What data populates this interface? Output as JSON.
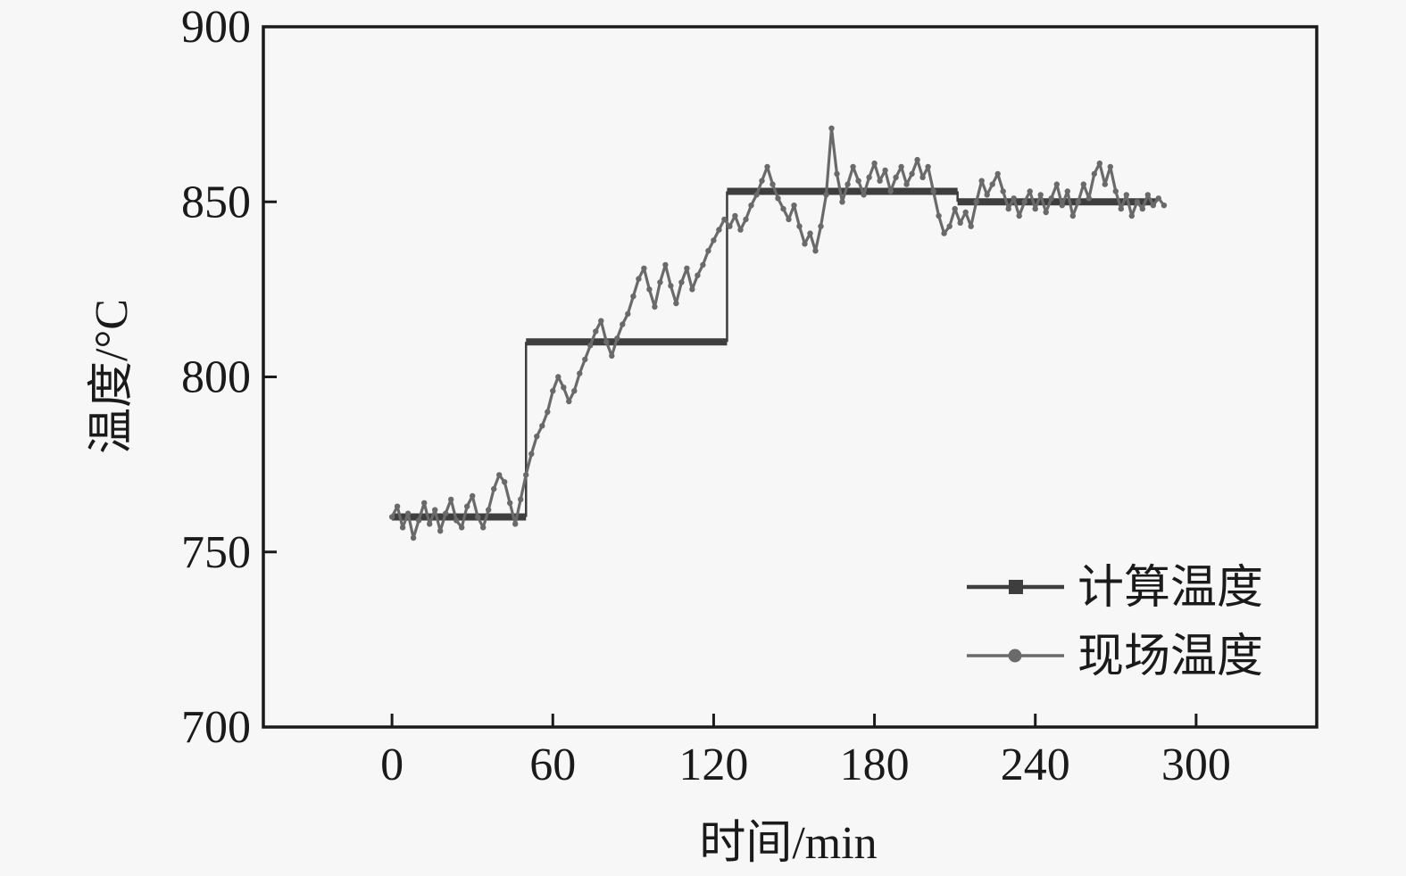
{
  "figure": {
    "background": "#f7f7f7",
    "axis_color": "#1a1a1a"
  },
  "chart_data": {
    "type": "line",
    "title": "",
    "xlabel": "时间/min",
    "ylabel": "温度/°C",
    "xlim": [
      -48,
      345
    ],
    "ylim": [
      700,
      900
    ],
    "x_ticks": [
      0,
      60,
      120,
      180,
      240,
      300
    ],
    "y_ticks": [
      900,
      850,
      800,
      750,
      700
    ],
    "grid": false,
    "legend_position": "lower-right",
    "series": [
      {
        "name": "计算温度",
        "kind": "step",
        "color": "#3e3e3e",
        "marker": "square",
        "segments": [
          {
            "t_start": 0,
            "t_end": 50,
            "value": 760
          },
          {
            "t_start": 50,
            "t_end": 125,
            "value": 810
          },
          {
            "t_start": 125,
            "t_end": 211,
            "value": 853
          },
          {
            "t_start": 211,
            "t_end": 285,
            "value": 850
          }
        ]
      },
      {
        "name": "现场温度",
        "kind": "noisy-line",
        "color": "#6a6a6a",
        "marker": "circle",
        "t0": 0,
        "dt": 2,
        "values": [
          760,
          763,
          757,
          761,
          754,
          759,
          764,
          758,
          762,
          756,
          761,
          765,
          759,
          757,
          763,
          766,
          760,
          757,
          762,
          768,
          772,
          770,
          764,
          758,
          765,
          772,
          778,
          783,
          786,
          790,
          796,
          800,
          797,
          793,
          796,
          801,
          805,
          809,
          813,
          816,
          810,
          806,
          811,
          815,
          818,
          823,
          828,
          831,
          825,
          820,
          827,
          832,
          826,
          821,
          827,
          831,
          825,
          829,
          832,
          836,
          839,
          842,
          845,
          843,
          846,
          842,
          845,
          849,
          852,
          856,
          860,
          855,
          851,
          848,
          845,
          849,
          843,
          838,
          841,
          836,
          843,
          852,
          871,
          858,
          850,
          855,
          860,
          856,
          852,
          857,
          861,
          856,
          859,
          853,
          857,
          860,
          855,
          858,
          862,
          857,
          860,
          853,
          846,
          841,
          843,
          848,
          844,
          847,
          843,
          850,
          856,
          852,
          855,
          858,
          853,
          848,
          851,
          846,
          850,
          853,
          848,
          852,
          847,
          851,
          855,
          849,
          853,
          846,
          850,
          855,
          851,
          858,
          861,
          855,
          860,
          853,
          848,
          852,
          846,
          850,
          848,
          852,
          849,
          851,
          849
        ]
      }
    ]
  }
}
